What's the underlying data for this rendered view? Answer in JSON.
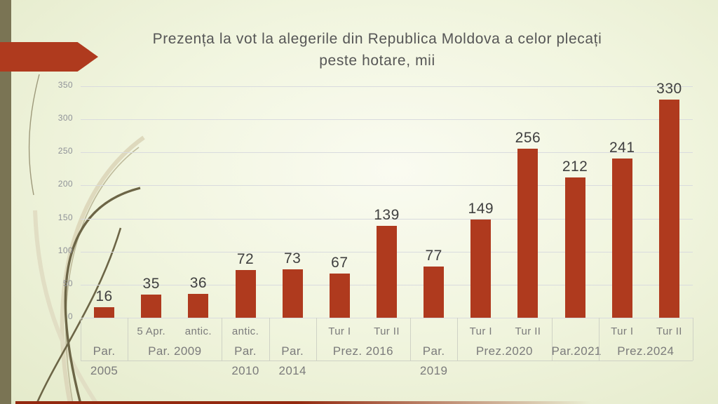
{
  "slide_title": "Prezența la vot la alegerile din Republica Moldova a celor plecați peste hotare, mii",
  "chart_data": {
    "type": "bar",
    "title": "Prezența la vot la alegerile din Republica Moldova a celor plecați peste hotare, mii",
    "title_lines": [
      "Prezența la vot la alegerile din Republica Moldova a celor plecați",
      "peste hotare, mii"
    ],
    "ylabel": "",
    "xlabel": "",
    "ylim": [
      0,
      350
    ],
    "yticks": [
      0,
      50,
      100,
      150,
      200,
      250,
      300,
      350
    ],
    "grid": "horizontal",
    "legend": "none",
    "data_labels": true,
    "groups": [
      {
        "label": "Par. 2005",
        "bars": [
          {
            "sub": "",
            "value": 16
          }
        ]
      },
      {
        "label": "Par. 2009",
        "bars": [
          {
            "sub": "5 Apr.",
            "value": 35
          },
          {
            "sub": "antic.",
            "value": 36
          }
        ]
      },
      {
        "label": "Par. 2010",
        "bars": [
          {
            "sub": "antic.",
            "value": 72
          }
        ]
      },
      {
        "label": "Par. 2014",
        "bars": [
          {
            "sub": "",
            "value": 73
          }
        ]
      },
      {
        "label": "Prez. 2016",
        "bars": [
          {
            "sub": "Tur I",
            "value": 67
          },
          {
            "sub": "Tur II",
            "value": 139
          }
        ]
      },
      {
        "label": "Par. 2019",
        "bars": [
          {
            "sub": "",
            "value": 77
          }
        ]
      },
      {
        "label": "Prez.2020",
        "bars": [
          {
            "sub": "Tur I",
            "value": 149
          },
          {
            "sub": "Tur II",
            "value": 256
          }
        ]
      },
      {
        "label": "Par.2021",
        "bars": [
          {
            "sub": "",
            "value": 212
          }
        ]
      },
      {
        "label": "Prez.2024",
        "bars": [
          {
            "sub": "Tur I",
            "value": 241
          },
          {
            "sub": "Tur II",
            "value": 330
          }
        ]
      }
    ],
    "colors": {
      "bar": "#AF3A1E",
      "gridline": "#D9DBDE",
      "axis_line": "#CFD2C5",
      "title_text": "#565656",
      "data_label_text": "#3F3F3F",
      "axis_label_text": "#7B7B7B",
      "ytick_text": "#8F9298"
    }
  },
  "decor": {
    "accent_arrow_color": "#AF3A1E",
    "side_stripe_color": "#7A7454",
    "bottom_strip_color": "#93290F",
    "swirl_dark_color": "#6C6546",
    "swirl_pale_color": "#DCD7BA",
    "background_center": "#FAFBF1",
    "background_edge": "#E4EACA"
  }
}
